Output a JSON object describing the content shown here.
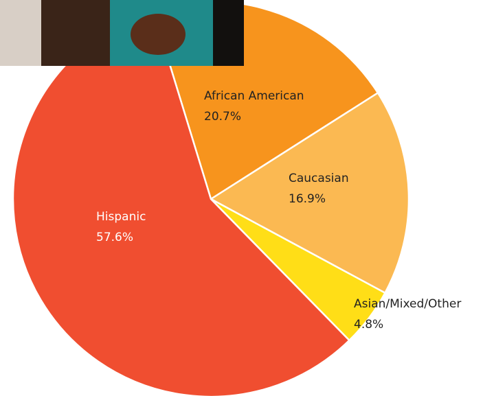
{
  "chart_data": {
    "type": "pie",
    "categories": [
      "African American",
      "Caucasian",
      "Asian/Mixed/Other",
      "Hispanic"
    ],
    "values": [
      20.7,
      16.9,
      4.8,
      57.6
    ],
    "value_labels": [
      "20.7%",
      "16.9%",
      "4.8%",
      "57.6%"
    ],
    "colors": [
      "#f7941d",
      "#fbb952",
      "#ffde17",
      "#f04e30"
    ]
  }
}
